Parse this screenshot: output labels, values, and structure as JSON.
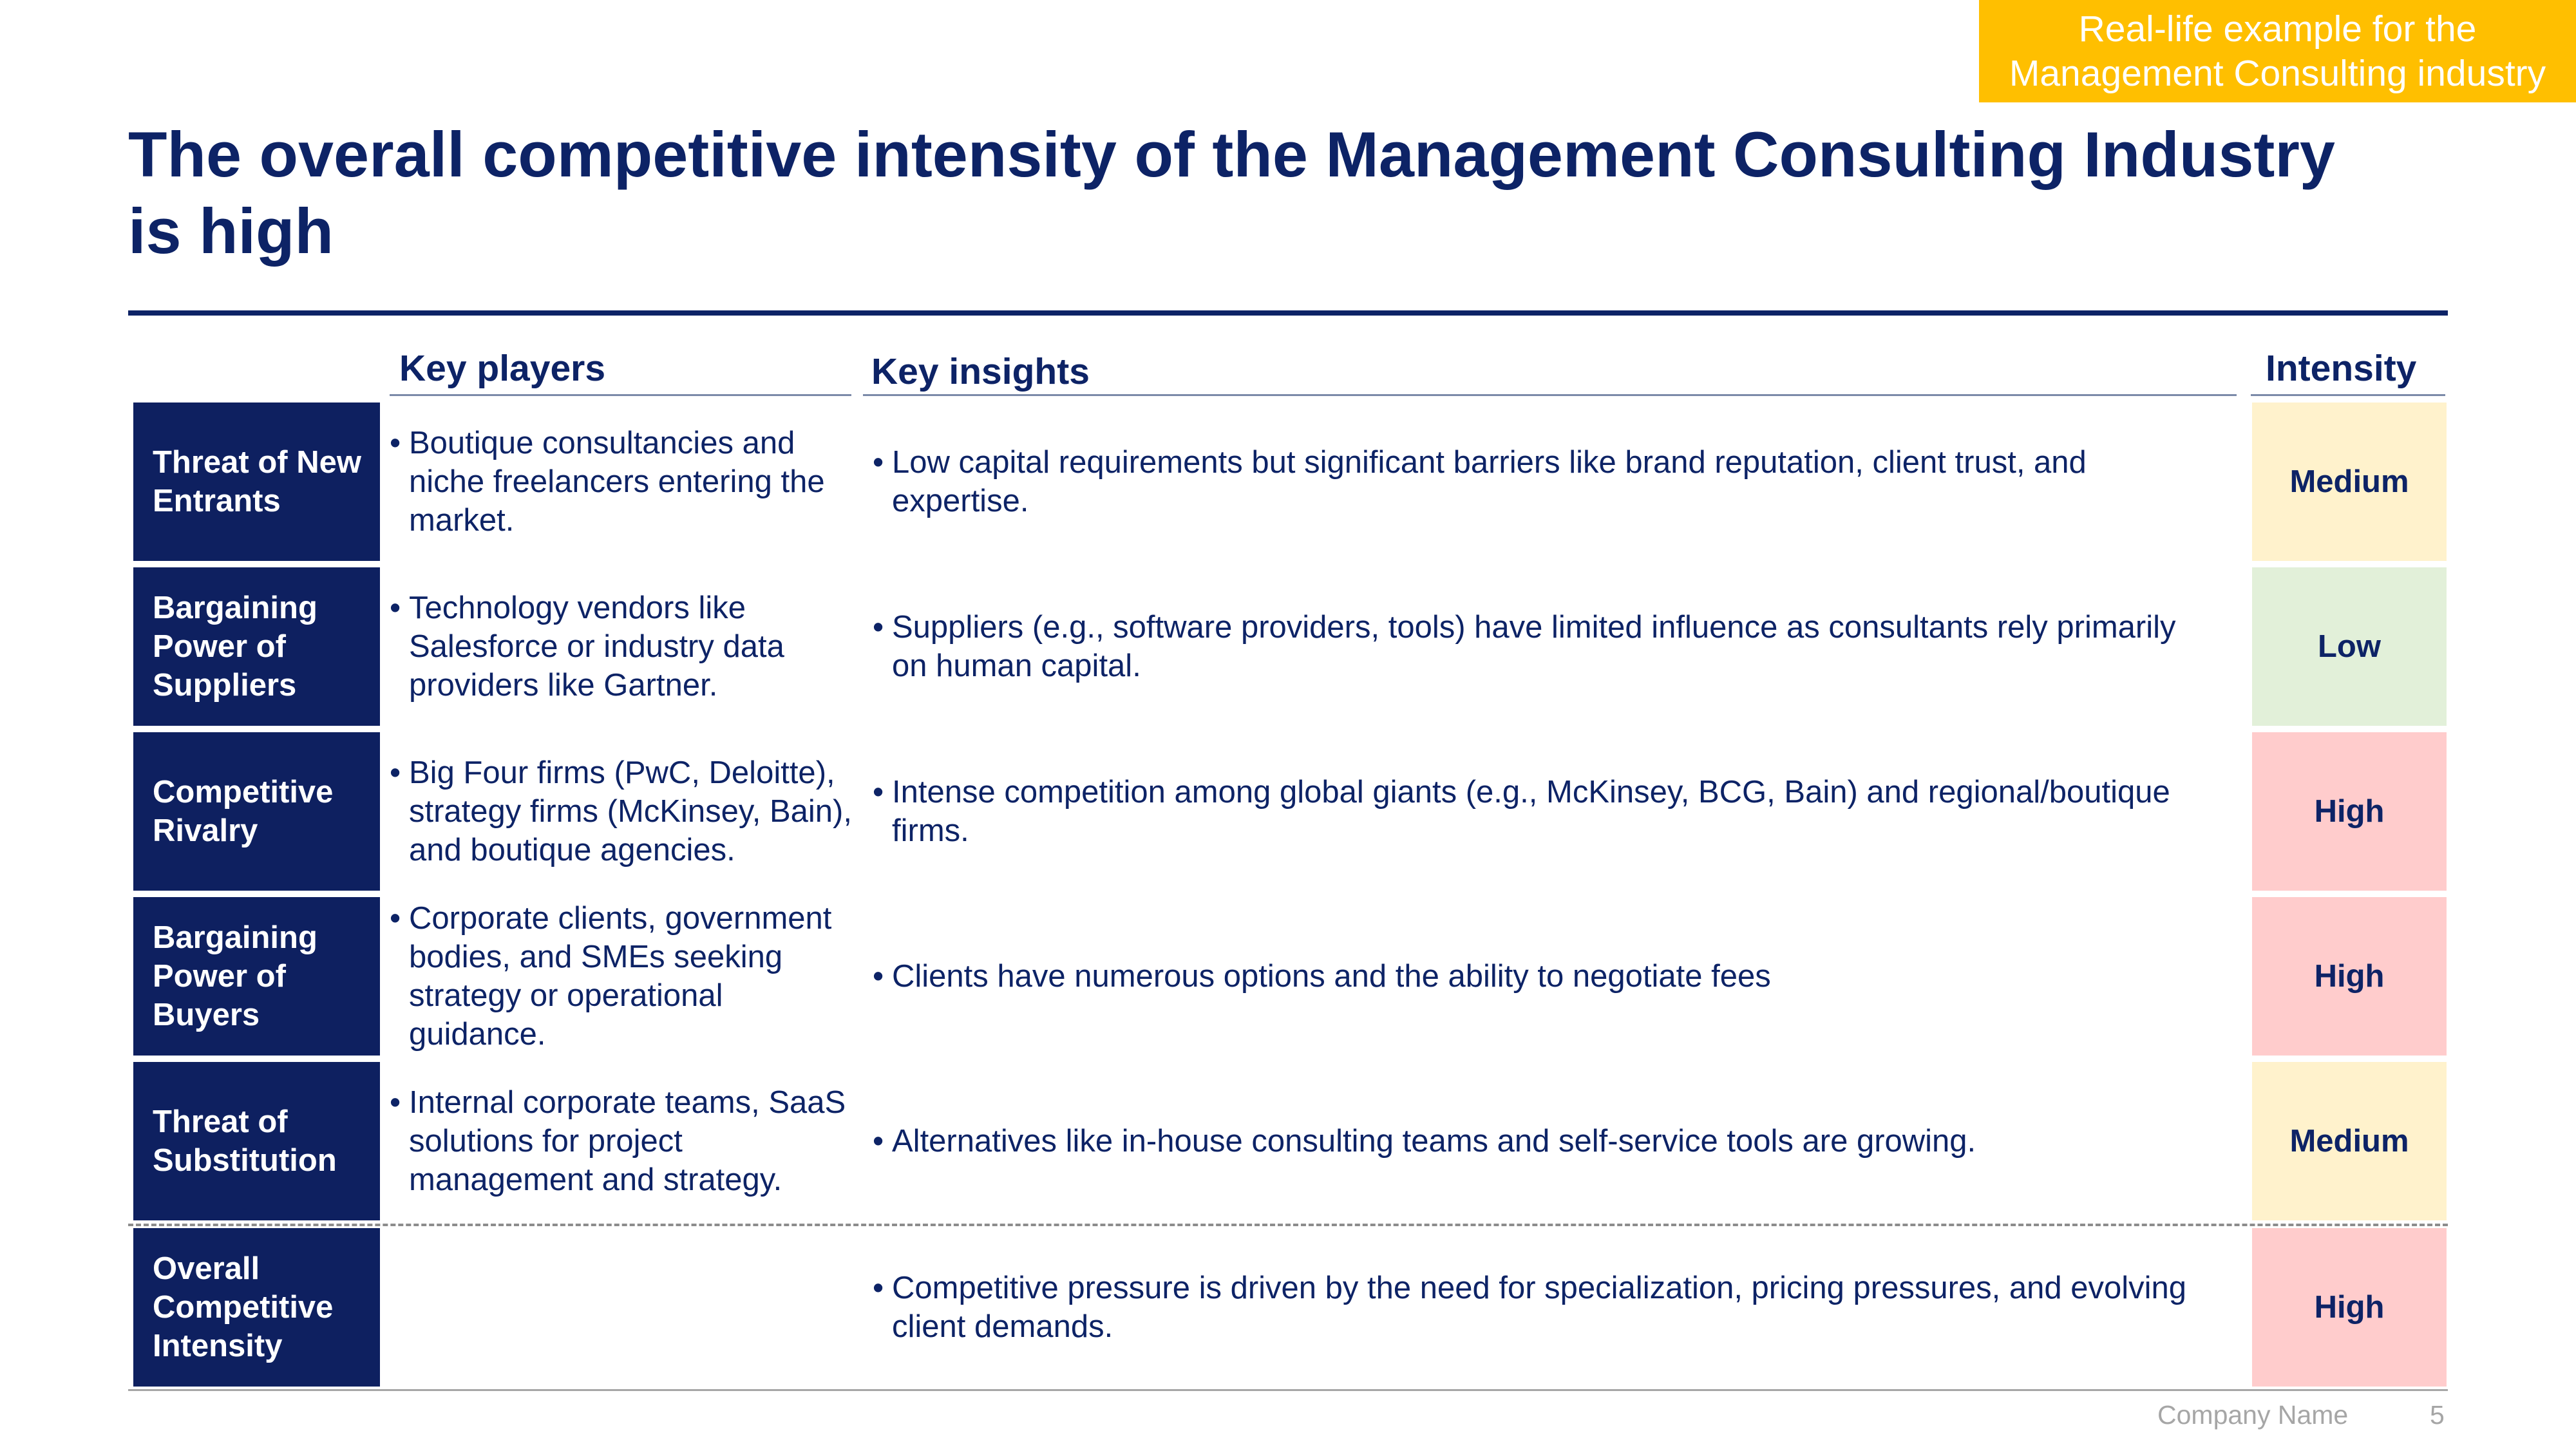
{
  "tag": {
    "line1": "Real-life example for the",
    "line2": "Management Consulting industry",
    "color": "#FFBF00"
  },
  "title": {
    "line1": "The overall competitive intensity of the Management Consulting Industry",
    "line2": "is high"
  },
  "headers": {
    "players": "Key players",
    "insights": "Key insights",
    "intensity": "Intensity"
  },
  "rows": [
    {
      "label": "Threat of New Entrants",
      "players": "Boutique consultancies and niche freelancers entering the market.",
      "insight": "Low capital requirements but significant barriers like brand reputation, client trust, and expertise.",
      "intensity": "Medium",
      "intensity_color": "#FFF2CC"
    },
    {
      "label": "Bargaining Power of Suppliers",
      "players": "Technology vendors like Salesforce or industry data providers like Gartner.",
      "insight": "Suppliers (e.g., software providers, tools) have limited influence as consultants rely primarily on human capital.",
      "intensity": "Low",
      "intensity_color": "#E2F0D9"
    },
    {
      "label": "Competitive Rivalry",
      "players": "Big Four firms (PwC, Deloitte), strategy firms (McKinsey, Bain), and boutique agencies.",
      "insight": "Intense competition among global giants (e.g., McKinsey, BCG, Bain) and regional/boutique firms.",
      "intensity": "High",
      "intensity_color": "#FFCCCC"
    },
    {
      "label": "Bargaining Power of Buyers",
      "players": "Corporate clients, government bodies, and SMEs seeking strategy or operational guidance.",
      "insight": "Clients have numerous options and the ability to negotiate fees",
      "intensity": "High",
      "intensity_color": "#FFCCCC"
    },
    {
      "label": "Threat of Substitution",
      "players": "Internal corporate teams, SaaS solutions for project management and strategy.",
      "insight": "Alternatives like in-house consulting teams and self-service tools are growing.",
      "intensity": "Medium",
      "intensity_color": "#FFF2CC"
    },
    {
      "label": "Overall Competitive Intensity",
      "players": "",
      "insight": "Competitive pressure is driven by the need for specialization, pricing pressures, and evolving client demands.",
      "intensity": "High",
      "intensity_color": "#FFCCCC"
    }
  ],
  "footer": {
    "company": "Company Name",
    "page": "5"
  }
}
